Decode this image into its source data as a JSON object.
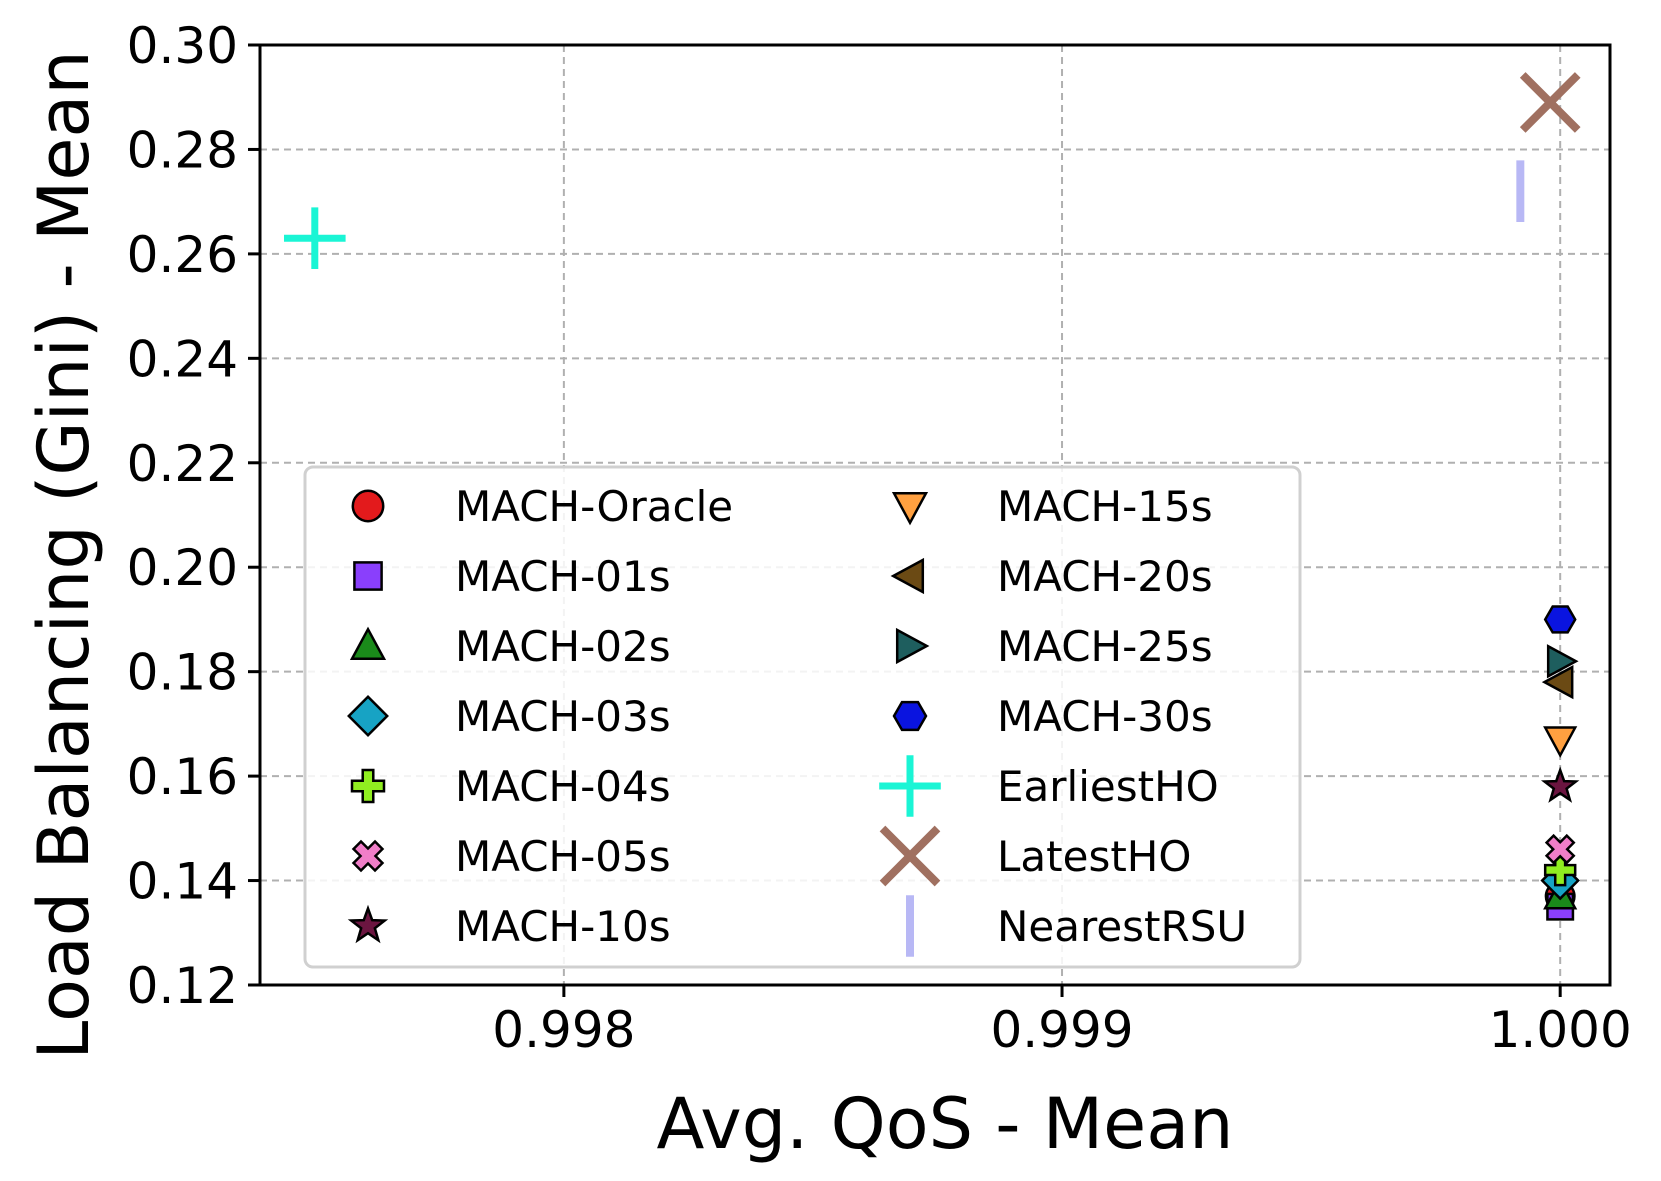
{
  "chart_data": {
    "type": "scatter",
    "xlabel": "Avg. QoS - Mean",
    "ylabel": "Load Balancing (Gini) - Mean",
    "xlim": [
      0.99739,
      1.0001
    ],
    "ylim": [
      0.12,
      0.3
    ],
    "x_ticks": [
      "0.998",
      "0.999",
      "1.000"
    ],
    "x_tick_values": [
      0.998,
      0.999,
      1.0
    ],
    "y_ticks": [
      "0.12",
      "0.14",
      "0.16",
      "0.18",
      "0.20",
      "0.22",
      "0.24",
      "0.26",
      "0.28",
      "0.30"
    ],
    "y_tick_values": [
      0.12,
      0.14,
      0.16,
      0.18,
      0.2,
      0.22,
      0.24,
      0.26,
      0.28,
      0.3
    ],
    "grid": true,
    "legend_position": "lower-left",
    "legend_columns": 2,
    "series": [
      {
        "name": "MACH-Oracle",
        "marker": "circle",
        "color": "#e31a1c",
        "x": 1.0,
        "y": 0.137
      },
      {
        "name": "MACH-01s",
        "marker": "square",
        "color": "#8a3ffc",
        "x": 1.0,
        "y": 0.135
      },
      {
        "name": "MACH-02s",
        "marker": "triangle-up",
        "color": "#1a8a1a",
        "x": 1.0,
        "y": 0.137
      },
      {
        "name": "MACH-03s",
        "marker": "diamond",
        "color": "#17a3c4",
        "x": 1.0,
        "y": 0.14
      },
      {
        "name": "MACH-04s",
        "marker": "plus-filled",
        "color": "#90ee20",
        "x": 1.0,
        "y": 0.142
      },
      {
        "name": "MACH-05s",
        "marker": "x-filled",
        "color": "#f07ec8",
        "x": 1.0,
        "y": 0.146
      },
      {
        "name": "MACH-10s",
        "marker": "star",
        "color": "#6b1540",
        "x": 1.0,
        "y": 0.158
      },
      {
        "name": "MACH-15s",
        "marker": "triangle-down",
        "color": "#ffa040",
        "x": 1.0,
        "y": 0.167
      },
      {
        "name": "MACH-20s",
        "marker": "triangle-left",
        "color": "#6b4a14",
        "x": 1.0,
        "y": 0.178
      },
      {
        "name": "MACH-25s",
        "marker": "triangle-right",
        "color": "#1e5e5e",
        "x": 1.0,
        "y": 0.182
      },
      {
        "name": "MACH-30s",
        "marker": "hexagon",
        "color": "#0a14e0",
        "x": 1.0,
        "y": 0.19
      },
      {
        "name": "EarliestHO",
        "marker": "plus",
        "color": "#1af5d5",
        "x": 0.9975,
        "y": 0.263
      },
      {
        "name": "LatestHO",
        "marker": "x",
        "color": "#a07060",
        "x": 0.99998,
        "y": 0.289
      },
      {
        "name": "NearestRSU",
        "marker": "vline",
        "color": "#b8b8f5",
        "x": 0.99992,
        "y": 0.272
      }
    ]
  }
}
